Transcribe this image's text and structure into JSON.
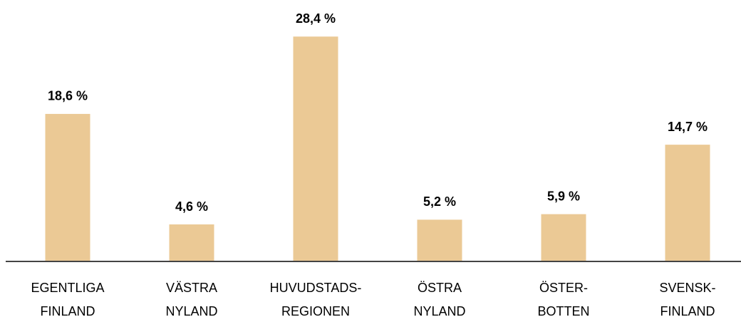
{
  "chart_data": {
    "type": "bar",
    "categories": [
      [
        "EGENTLIGA",
        "FINLAND"
      ],
      [
        "VÄSTRA",
        "NYLAND"
      ],
      [
        "HUVUDSTADS-",
        "REGIONEN"
      ],
      [
        "ÖSTRA",
        "NYLAND"
      ],
      [
        "ÖSTER-",
        "BOTTEN"
      ],
      [
        "SVENSK-",
        "FINLAND"
      ]
    ],
    "values": [
      18.6,
      4.6,
      28.4,
      5.2,
      5.9,
      14.7
    ],
    "value_labels": [
      "18,6 %",
      "4,6 %",
      "28,4 %",
      "5,2 %",
      "5,9 %",
      "14,7 %"
    ],
    "color": "#ebc995"
  }
}
